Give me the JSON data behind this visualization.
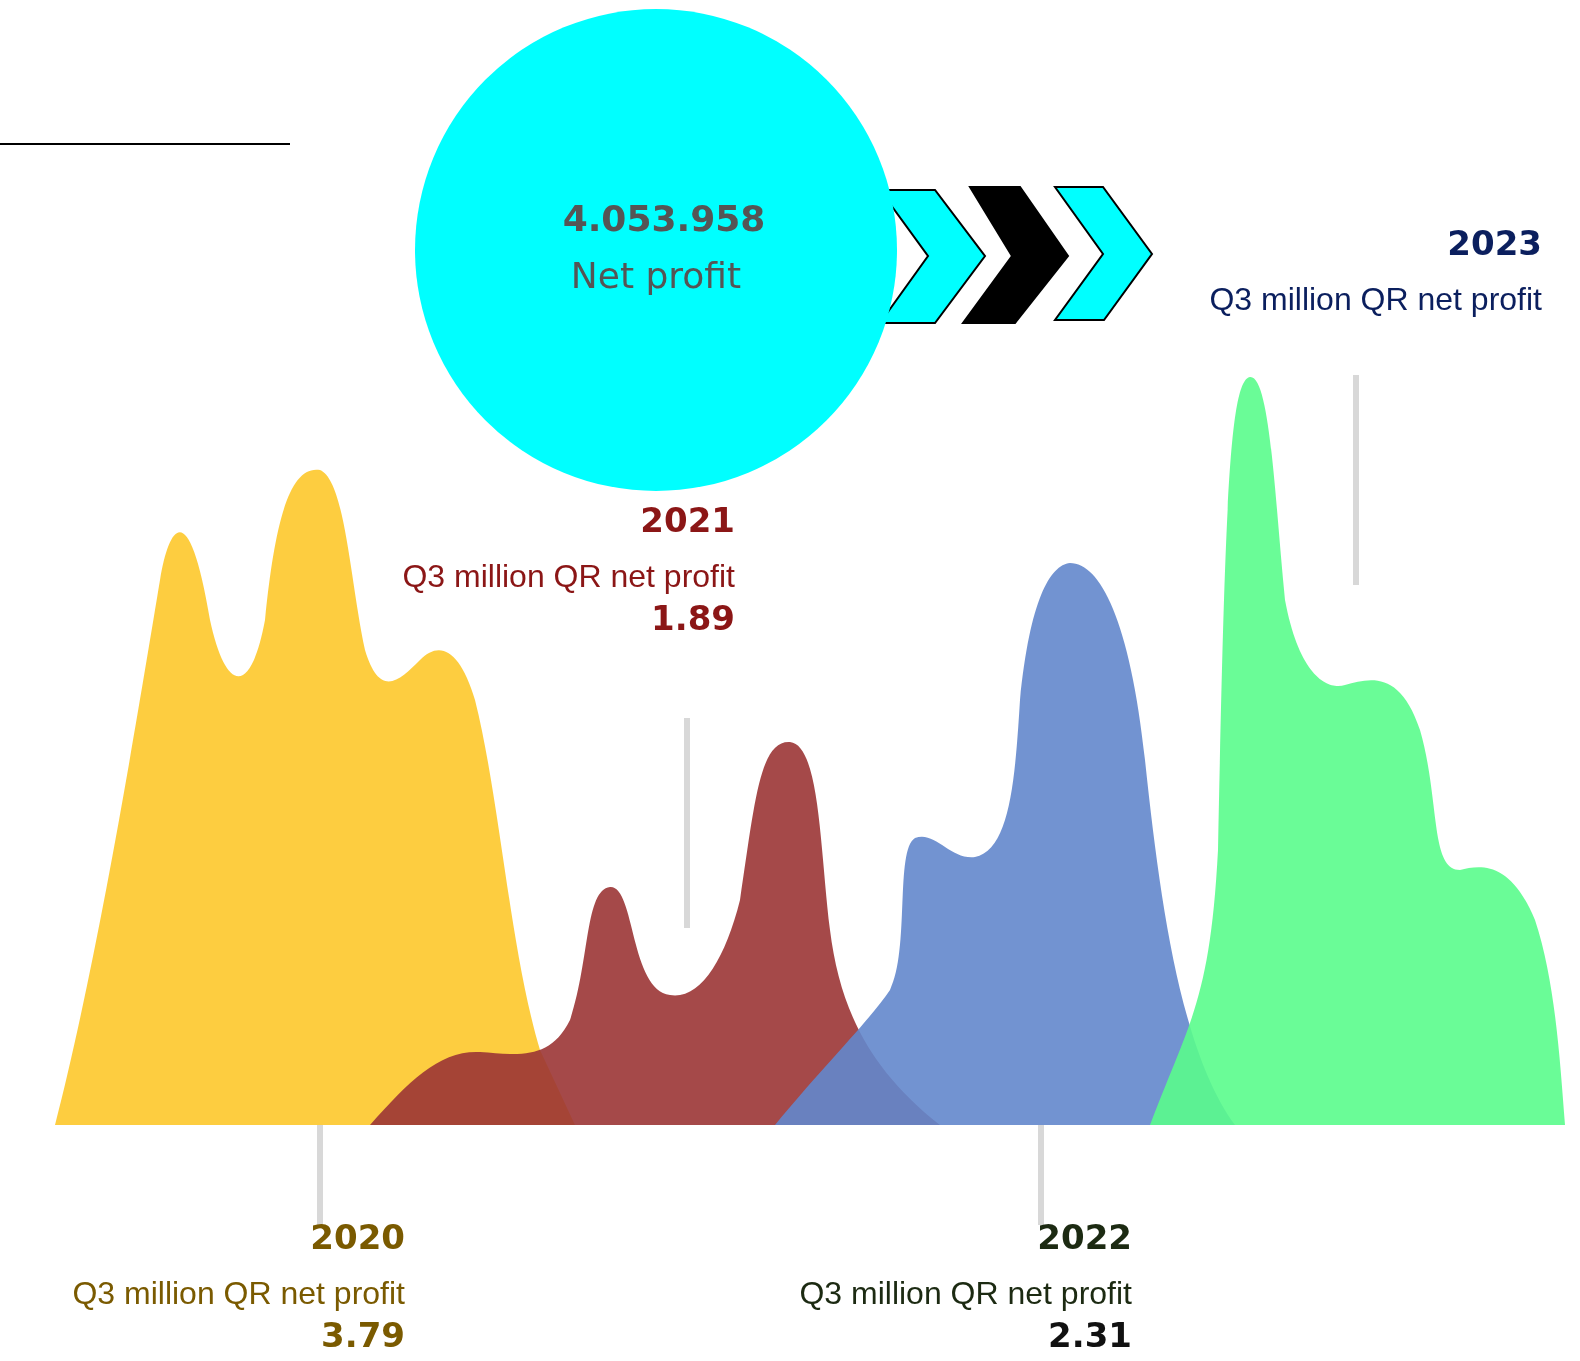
{
  "chart_data": {
    "type": "other",
    "categories": [
      "2020",
      "2021",
      "2022",
      "2023"
    ],
    "values": [
      3.79,
      1.89,
      2.31,
      null
    ],
    "colors": [
      "#fdc82b",
      "#9b3535",
      "#6387cc",
      "#5afc8c"
    ],
    "ylabel": "Q3 million QR net profit",
    "data_labels": true,
    "annotations": [
      "4.053.958",
      "Net profit"
    ]
  }
}
